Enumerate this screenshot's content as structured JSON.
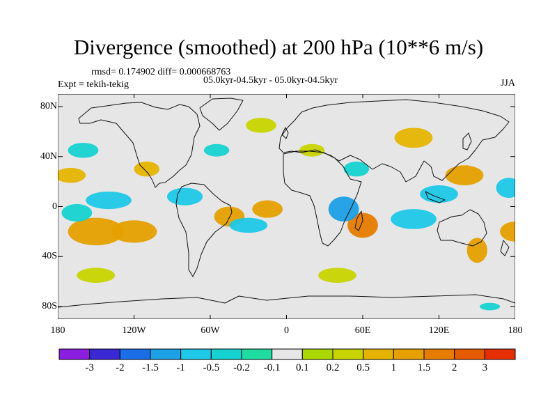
{
  "title": "Divergence (smoothed) at 200 hPa (10**6 m/s)",
  "stats": "rmsd= 0.174902 diff= 0.000668763",
  "period": "05.0kyr-04.5kyr - 05.0kyr-04.5kyr",
  "experiment": "Expt = tekih-tekig",
  "season": "JJA",
  "y_axis": {
    "ticks": [
      {
        "value": 80,
        "label": "80N"
      },
      {
        "value": 40,
        "label": "40N"
      },
      {
        "value": 0,
        "label": "0"
      },
      {
        "value": -40,
        "label": "40S"
      },
      {
        "value": -80,
        "label": "80S"
      }
    ]
  },
  "x_axis": {
    "ticks": [
      {
        "value": -180,
        "label": "180"
      },
      {
        "value": -120,
        "label": "120W"
      },
      {
        "value": -60,
        "label": "60W"
      },
      {
        "value": 0,
        "label": "0"
      },
      {
        "value": 60,
        "label": "60E"
      },
      {
        "value": 120,
        "label": "120E"
      },
      {
        "value": 180,
        "label": "180"
      }
    ]
  },
  "colorbar": {
    "colors": [
      "#8c1ee0",
      "#3a28d4",
      "#1a6ee6",
      "#1ea0e6",
      "#1ec8e8",
      "#16d2d0",
      "#20dca0",
      "#e6e6e6",
      "#aad800",
      "#c8d400",
      "#e6b400",
      "#e6a000",
      "#e67c00",
      "#e65a00",
      "#e62e00"
    ],
    "labels": [
      "-3",
      "-2",
      "-1.5",
      "-1",
      "-0.5",
      "-0.2",
      "-0.1",
      "0.1",
      "0.2",
      "0.5",
      "1",
      "1.5",
      "2",
      "3"
    ]
  },
  "chart_data": {
    "type": "heatmap",
    "variable": "Divergence (smoothed) at 200 hPa",
    "units": "10**6 m/s",
    "lon_range": [
      -180,
      180
    ],
    "lat_range": [
      -90,
      90
    ],
    "contour_levels": [
      -3,
      -2,
      -1.5,
      -1,
      -0.5,
      -0.2,
      -0.1,
      0.1,
      0.2,
      0.5,
      1,
      1.5,
      2,
      3
    ],
    "anomaly_regions": [
      {
        "lon": -150,
        "lat": -20,
        "lon_half_width": 22,
        "lat_half_height": 11,
        "value": 1.2
      },
      {
        "lon": -120,
        "lat": -20,
        "lon_half_width": 18,
        "lat_half_height": 9,
        "value": 1.1
      },
      {
        "lon": -45,
        "lat": -8,
        "lon_half_width": 12,
        "lat_half_height": 8,
        "value": 1.2
      },
      {
        "lon": -15,
        "lat": -2,
        "lon_half_width": 12,
        "lat_half_height": 7,
        "value": 1.0
      },
      {
        "lon": 60,
        "lat": -15,
        "lon_half_width": 12,
        "lat_half_height": 10,
        "value": 1.5
      },
      {
        "lon": 140,
        "lat": 25,
        "lon_half_width": 15,
        "lat_half_height": 8,
        "value": 1.0
      },
      {
        "lon": 150,
        "lat": -35,
        "lon_half_width": 8,
        "lat_half_height": 10,
        "value": 1.0
      },
      {
        "lon": 180,
        "lat": -20,
        "lon_half_width": 12,
        "lat_half_height": 8,
        "value": 1.0
      },
      {
        "lon": -110,
        "lat": 30,
        "lon_half_width": 10,
        "lat_half_height": 6,
        "value": 0.6
      },
      {
        "lon": 100,
        "lat": 55,
        "lon_half_width": 15,
        "lat_half_height": 8,
        "value": 0.5
      },
      {
        "lon": -170,
        "lat": 25,
        "lon_half_width": 12,
        "lat_half_height": 6,
        "value": 0.5
      },
      {
        "lon": -140,
        "lat": 5,
        "lon_half_width": 18,
        "lat_half_height": 7,
        "value": -0.8
      },
      {
        "lon": -80,
        "lat": 8,
        "lon_half_width": 14,
        "lat_half_height": 7,
        "value": -1.0
      },
      {
        "lon": 45,
        "lat": -2,
        "lon_half_width": 12,
        "lat_half_height": 10,
        "value": -1.2
      },
      {
        "lon": 100,
        "lat": -10,
        "lon_half_width": 18,
        "lat_half_height": 8,
        "value": -1.0
      },
      {
        "lon": -30,
        "lat": -15,
        "lon_half_width": 15,
        "lat_half_height": 6,
        "value": -0.6
      },
      {
        "lon": 120,
        "lat": 10,
        "lon_half_width": 15,
        "lat_half_height": 7,
        "value": -0.7
      },
      {
        "lon": 175,
        "lat": 15,
        "lon_half_width": 10,
        "lat_half_height": 8,
        "value": -0.8
      },
      {
        "lon": -165,
        "lat": -5,
        "lon_half_width": 12,
        "lat_half_height": 7,
        "value": -0.5
      },
      {
        "lon": -55,
        "lat": 45,
        "lon_half_width": 10,
        "lat_half_height": 5,
        "value": -0.5
      },
      {
        "lon": -160,
        "lat": 45,
        "lon_half_width": 12,
        "lat_half_height": 6,
        "value": -0.3
      },
      {
        "lon": 55,
        "lat": 30,
        "lon_half_width": 10,
        "lat_half_height": 6,
        "value": -0.4
      },
      {
        "lon": 160,
        "lat": -80,
        "lon_half_width": 8,
        "lat_half_height": 3,
        "value": -0.3
      },
      {
        "lon": -150,
        "lat": -55,
        "lon_half_width": 15,
        "lat_half_height": 6,
        "value": 0.3
      },
      {
        "lon": 40,
        "lat": -55,
        "lon_half_width": 15,
        "lat_half_height": 6,
        "value": 0.3
      },
      {
        "lon": -20,
        "lat": 65,
        "lon_half_width": 12,
        "lat_half_height": 6,
        "value": 0.4
      },
      {
        "lon": 20,
        "lat": 45,
        "lon_half_width": 10,
        "lat_half_height": 5,
        "value": 0.3
      }
    ],
    "x_label": "",
    "y_label": ""
  }
}
